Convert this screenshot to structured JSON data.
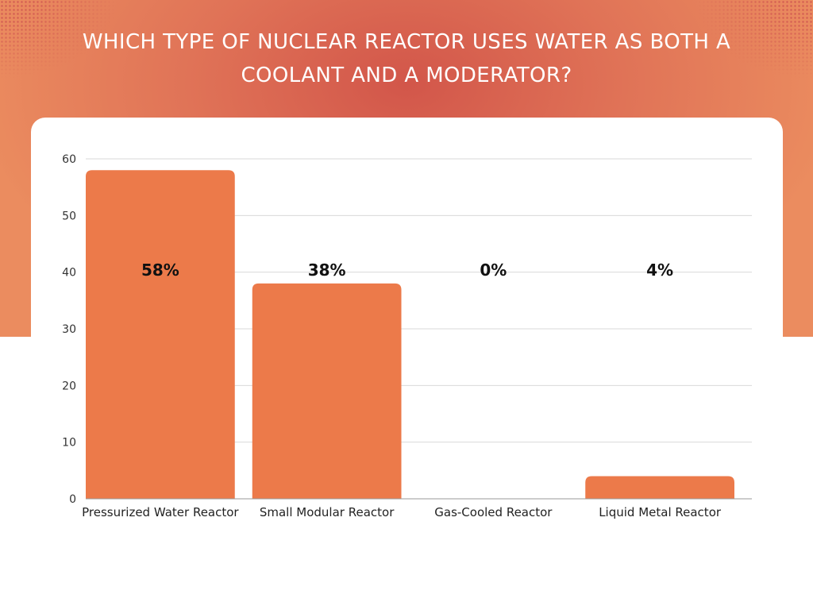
{
  "header": {
    "title": "WHICH TYPE OF NUCLEAR REACTOR USES WATER AS BOTH A COOLANT AND A MODERATOR?"
  },
  "colors": {
    "bar": "#ec7a4a",
    "grid": "#d9d9d9",
    "band": "#e07357"
  },
  "chart_data": {
    "type": "bar",
    "title": "WHICH TYPE OF NUCLEAR REACTOR USES WATER AS BOTH A COOLANT AND A MODERATOR?",
    "xlabel": "",
    "ylabel": "",
    "categories": [
      "Pressurized Water Reactor",
      "Small Modular Reactor",
      "Gas-Cooled Reactor",
      "Liquid Metal Reactor"
    ],
    "values": [
      58,
      38,
      0,
      4
    ],
    "data_labels": [
      "58%",
      "38%",
      "0%",
      "4%"
    ],
    "ylim": [
      0,
      60
    ],
    "yticks": [
      0,
      10,
      20,
      30,
      40,
      50,
      60
    ],
    "grid": true,
    "legend": "none"
  }
}
